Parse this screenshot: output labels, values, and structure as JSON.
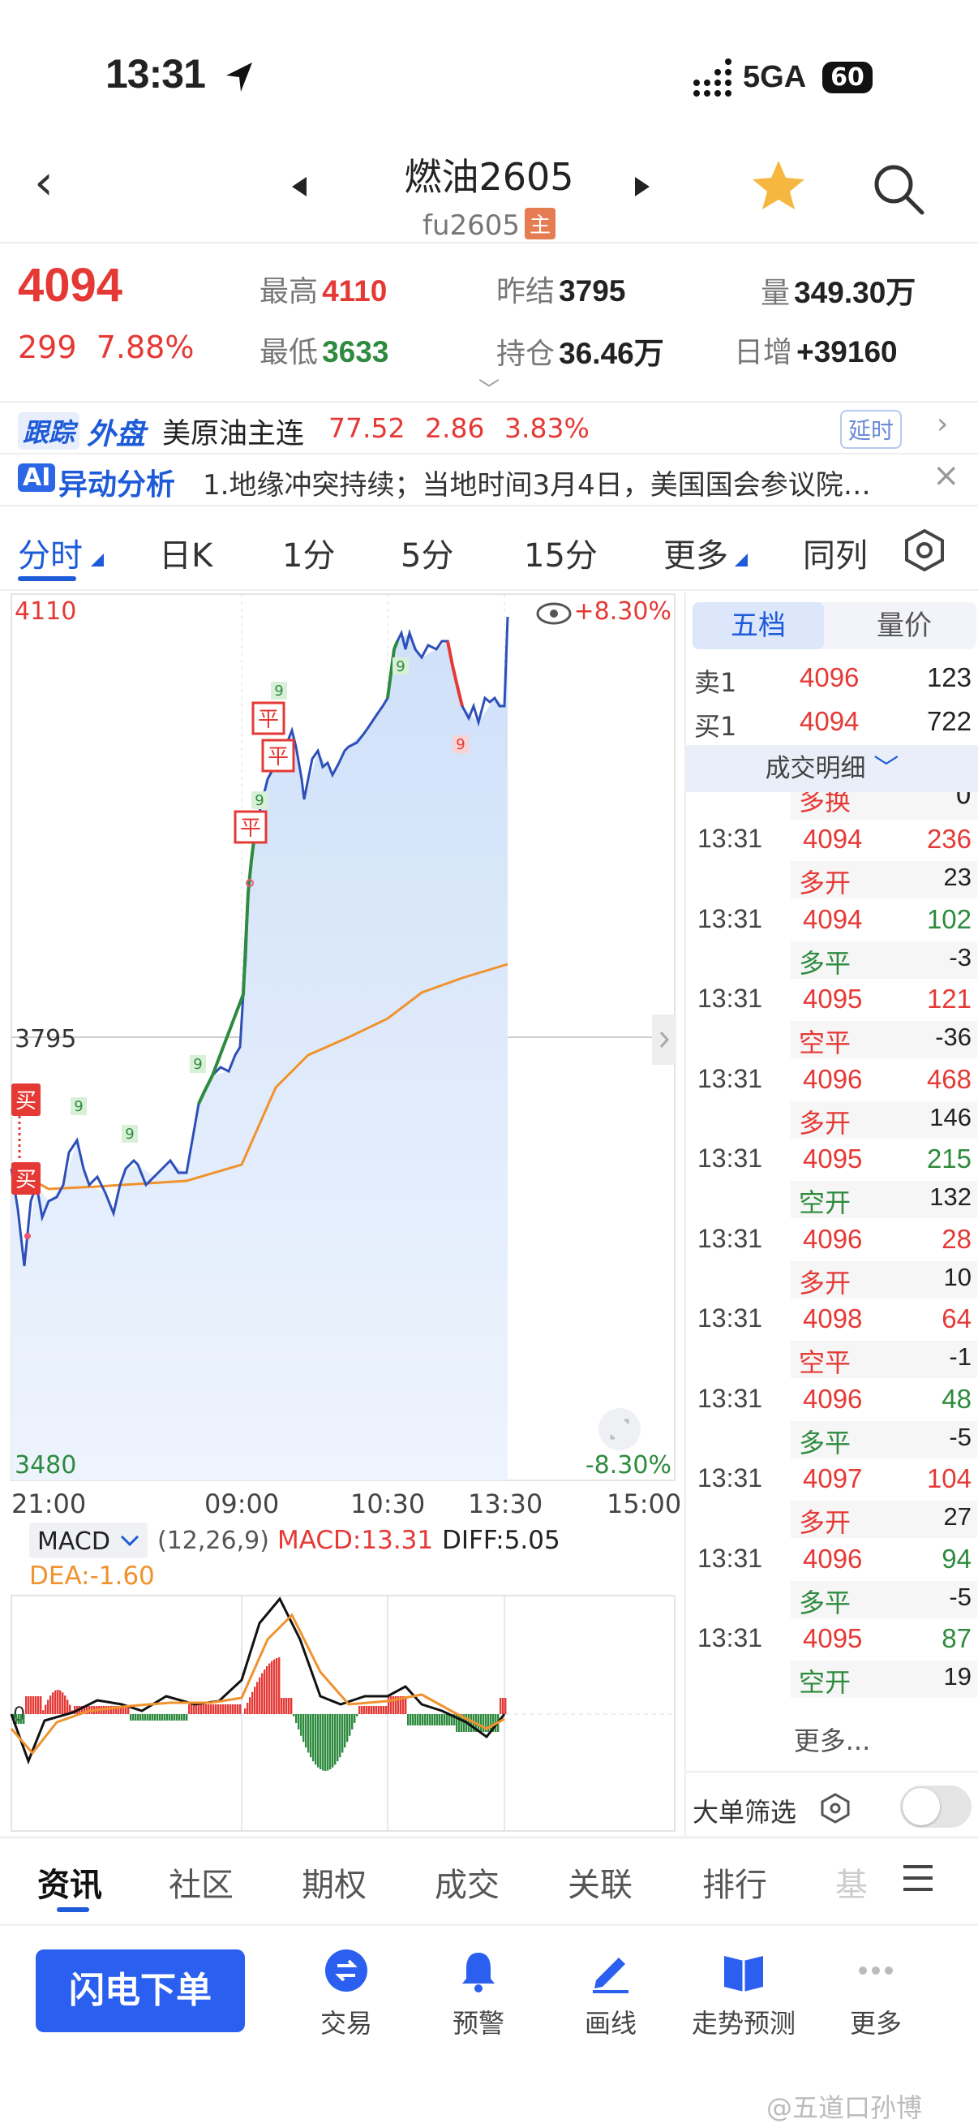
{
  "status": {
    "time": "13:31",
    "network": "5GA",
    "battery": "60"
  },
  "header": {
    "title": "燃油2605",
    "subtitle": "fu2605",
    "tag": "主"
  },
  "quote": {
    "price": "4094",
    "change": "299",
    "change_pct": "7.88%",
    "high_label": "最高",
    "high": "4110",
    "low_label": "最低",
    "low": "3633",
    "prev_label": "昨结",
    "prev": "3795",
    "oi_label": "持仓",
    "oi": "36.46万",
    "vol_label": "量",
    "vol": "349.30万",
    "daily_label": "日增",
    "daily": "+39160"
  },
  "foreign": {
    "tag1": "跟踪",
    "tag2": "外盘",
    "name": "美原油主连",
    "price": "77.52",
    "chg": "2.86",
    "pct": "3.83%",
    "delay": "延时"
  },
  "ai": {
    "badge": "AI",
    "label": "异动分析",
    "text": "1.地缘冲突持续；当地时间3月4日，美国国会参议院…"
  },
  "period_tabs": [
    "分时",
    "日K",
    "1分",
    "5分",
    "15分",
    "更多",
    "同列"
  ],
  "chart": {
    "top_label": "4110",
    "mid_label": "3795",
    "bottom_label": "3480",
    "top_pct": "+8.30%",
    "bottom_pct": "-8.30%",
    "times": [
      "21:00",
      "09:00",
      "10:30",
      "13:30",
      "15:00"
    ],
    "macd_btn": "MACD",
    "macd_params": "(12,26,9)",
    "macd_val": "MACD:13.31",
    "diff": "DIFF:5.05",
    "dea": "DEA:-1.60",
    "markers": {
      "buy": "买",
      "close": "平",
      "nine": "9",
      "zero": "0"
    }
  },
  "chart_data": {
    "type": "line",
    "title": "",
    "xlabel": "",
    "ylabel": "",
    "ylim": [
      3480,
      4110
    ],
    "prev_settle": 3795,
    "x": [
      "21:00",
      "09:00",
      "10:30",
      "13:30"
    ],
    "series": [
      {
        "values": [
          3633,
          3780,
          4060,
          4094
        ]
      },
      {
        "values": [
          3700,
          3730,
          3880,
          3935
        ]
      }
    ]
  },
  "orderbook": {
    "tabs": [
      "五档",
      "量价"
    ],
    "rows": [
      {
        "label": "卖1",
        "price": "4096",
        "vol": "123"
      },
      {
        "label": "买1",
        "price": "4094",
        "vol": "722"
      }
    ],
    "detail_header": "成交明细",
    "partial_act": "多换",
    "partial_delta": "0"
  },
  "trades": [
    {
      "time": "13:31",
      "price": "4094",
      "vol": "236",
      "act": "多开",
      "delta": "23",
      "pc": "red",
      "vc": "red",
      "ac": "red"
    },
    {
      "time": "13:31",
      "price": "4094",
      "vol": "102",
      "act": "多平",
      "delta": "-3",
      "pc": "red",
      "vc": "green",
      "ac": "green"
    },
    {
      "time": "13:31",
      "price": "4095",
      "vol": "121",
      "act": "空平",
      "delta": "-36",
      "pc": "red",
      "vc": "red",
      "ac": "red"
    },
    {
      "time": "13:31",
      "price": "4096",
      "vol": "468",
      "act": "多开",
      "delta": "146",
      "pc": "red",
      "vc": "red",
      "ac": "red"
    },
    {
      "time": "13:31",
      "price": "4095",
      "vol": "215",
      "act": "空开",
      "delta": "132",
      "pc": "red",
      "vc": "green",
      "ac": "green"
    },
    {
      "time": "13:31",
      "price": "4096",
      "vol": "28",
      "act": "多开",
      "delta": "10",
      "pc": "red",
      "vc": "red",
      "ac": "red"
    },
    {
      "time": "13:31",
      "price": "4098",
      "vol": "64",
      "act": "空平",
      "delta": "-1",
      "pc": "red",
      "vc": "red",
      "ac": "red"
    },
    {
      "time": "13:31",
      "price": "4096",
      "vol": "48",
      "act": "多平",
      "delta": "-5",
      "pc": "red",
      "vc": "green",
      "ac": "green"
    },
    {
      "time": "13:31",
      "price": "4097",
      "vol": "104",
      "act": "多开",
      "delta": "27",
      "pc": "red",
      "vc": "red",
      "ac": "red"
    },
    {
      "time": "13:31",
      "price": "4096",
      "vol": "94",
      "act": "多平",
      "delta": "-5",
      "pc": "red",
      "vc": "green",
      "ac": "green"
    },
    {
      "time": "13:31",
      "price": "4095",
      "vol": "87",
      "act": "空开",
      "delta": "19",
      "pc": "red",
      "vc": "green",
      "ac": "green"
    }
  ],
  "more_trades": "更多...",
  "filter_label": "大单筛选",
  "bottom_tabs": [
    "资讯",
    "社区",
    "期权",
    "成交",
    "关联",
    "排行",
    "基"
  ],
  "actions": {
    "flash": "闪电下单",
    "items": [
      "交易",
      "预警",
      "画线",
      "走势预测",
      "更多"
    ]
  },
  "watermark": "@五道口孙博",
  "colors": {
    "up": "#e53935",
    "down": "#2e8b3e",
    "accent": "#1e5bd8"
  }
}
